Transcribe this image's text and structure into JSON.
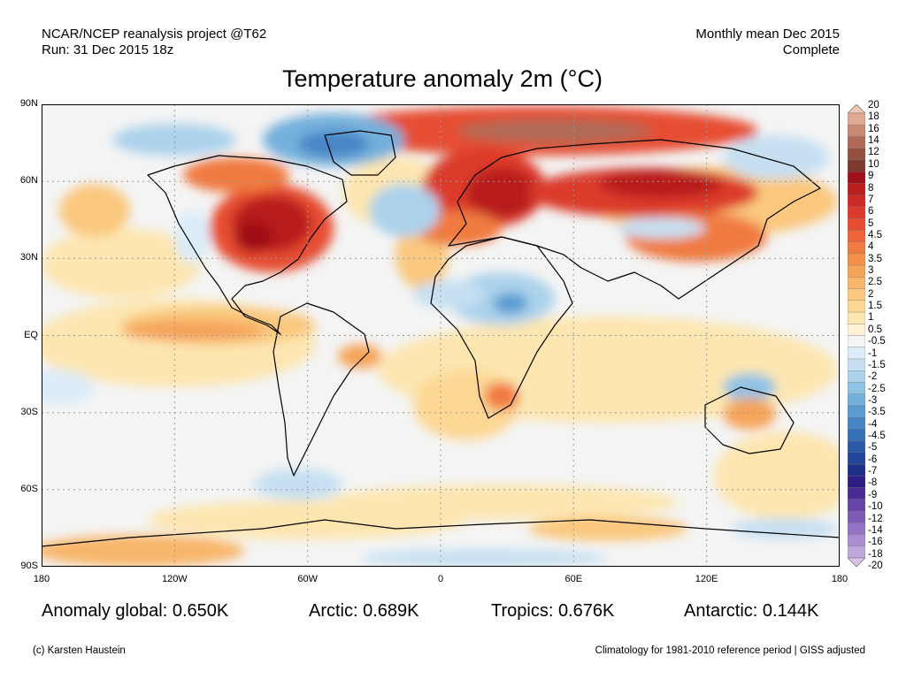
{
  "header": {
    "project": "NCAR/NCEP reanalysis project @T62",
    "run": "Run: 31 Dec 2015 18z",
    "period": "Monthly mean Dec 2015",
    "status": "Complete"
  },
  "title": "Temperature anomaly 2m (°C)",
  "map": {
    "lat_labels": [
      "90N",
      "60N",
      "30N",
      "EQ",
      "30S",
      "60S",
      "90S"
    ],
    "lon_labels": [
      "180",
      "120W",
      "60W",
      "0",
      "60E",
      "120E",
      "180"
    ],
    "grid": true,
    "lat_range": [
      -90,
      90
    ],
    "lon_range": [
      -180,
      180
    ]
  },
  "colorbar": {
    "labels": [
      "20",
      "18",
      "16",
      "14",
      "12",
      "10",
      "9",
      "8",
      "7",
      "6",
      "5",
      "4.5",
      "4",
      "3.5",
      "3",
      "2.5",
      "2",
      "1.5",
      "1",
      "0.5",
      "-0.5",
      "-1",
      "-1.5",
      "-2",
      "-2.5",
      "-3",
      "-3.5",
      "-4",
      "-4.5",
      "-5",
      "-6",
      "-7",
      "-8",
      "-9",
      "-10",
      "-12",
      "-14",
      "-16",
      "-18",
      "-20"
    ],
    "colors": [
      "#f2c8b4",
      "#e0a890",
      "#c98a72",
      "#b06a56",
      "#96503e",
      "#7d3a2c",
      "#a01018",
      "#b81e1e",
      "#cc2a24",
      "#dc3a2a",
      "#e64e32",
      "#ec6438",
      "#f07a40",
      "#f4904c",
      "#f6a45a",
      "#f8b66a",
      "#fac87e",
      "#fcd894",
      "#fde6b0",
      "#fff2d2",
      "#f4f4f4",
      "#dcecf8",
      "#c6e0f2",
      "#acd2ec",
      "#90c2e4",
      "#74b0dc",
      "#5a9cd2",
      "#4686c6",
      "#3670b8",
      "#2a5aa8",
      "#22449a",
      "#1e2f8a",
      "#2c1e84",
      "#4a2a94",
      "#6444a6",
      "#7c5cb6",
      "#9474c4",
      "#aa8ed2",
      "#c0a8de",
      "#d6c4ea"
    ]
  },
  "stats": {
    "global": "Anomaly global: 0.650K",
    "arctic": "Arctic: 0.689K",
    "tropics": "Tropics: 0.676K",
    "antarctic": "Antarctic: 0.144K"
  },
  "footer": {
    "credit": "(c) Karsten Haustein",
    "note": "Climatology for 1981-2010 reference period | GISS adjusted"
  }
}
